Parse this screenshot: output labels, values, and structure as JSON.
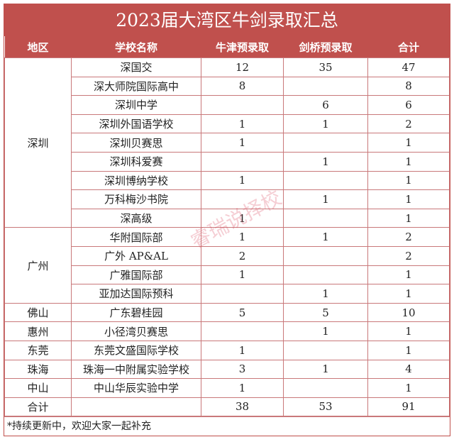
{
  "title": "2023届大湾区牛剑录取汇总",
  "headers": [
    "地区",
    "学校名称",
    "牛津预录取",
    "剑桥预录取",
    "合计"
  ],
  "groups": [
    {
      "region": "深圳",
      "rows": [
        [
          "深国交",
          "12",
          "35",
          "47"
        ],
        [
          "深大师院国际高中",
          "8",
          "",
          "8"
        ],
        [
          "深圳中学",
          "",
          "6",
          "6"
        ],
        [
          "深圳外国语学校",
          "1",
          "1",
          "2"
        ],
        [
          "深圳贝赛思",
          "1",
          "",
          "1"
        ],
        [
          "深圳科爱赛",
          "",
          "1",
          "1"
        ],
        [
          "深圳博纳学校",
          "1",
          "",
          "1"
        ],
        [
          "万科梅沙书院",
          "",
          "1",
          "1"
        ],
        [
          "深高级",
          "1",
          "",
          "1"
        ]
      ]
    },
    {
      "region": "广州",
      "rows": [
        [
          "华附国际部",
          "1",
          "1",
          "2"
        ],
        [
          "广外 AP&AL",
          "2",
          "",
          "2"
        ],
        [
          "广雅国际部",
          "1",
          "",
          "1"
        ],
        [
          "亚加达国际预科",
          "",
          "1",
          "1"
        ]
      ]
    },
    {
      "region": "佛山",
      "rows": [
        [
          "广东碧桂园",
          "5",
          "5",
          "10"
        ]
      ]
    },
    {
      "region": "惠州",
      "rows": [
        [
          "小径湾贝赛思",
          "",
          "1",
          "1"
        ]
      ]
    },
    {
      "region": "东莞",
      "rows": [
        [
          "东莞文盛国际学校",
          "1",
          "",
          "1"
        ]
      ]
    },
    {
      "region": "珠海",
      "rows": [
        [
          "珠海一中附属实验学校",
          "3",
          "1",
          "4"
        ]
      ]
    },
    {
      "region": "中山",
      "rows": [
        [
          "中山华辰实验中学",
          "1",
          "",
          "1"
        ]
      ]
    }
  ],
  "total": {
    "label": "合计",
    "oxford": "38",
    "cambridge": "53",
    "sum": "91"
  },
  "footnote": "*持续更新中，欢迎大家一起补充",
  "watermark": "睿瑞说择校",
  "colors": {
    "accent": "#c0504d"
  }
}
